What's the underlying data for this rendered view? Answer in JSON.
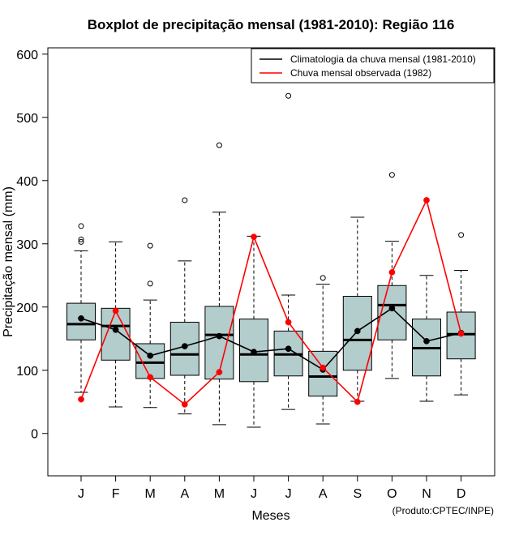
{
  "chart_data": {
    "type": "boxplot",
    "title": "Boxplot de precipitação mensal (1981-2010): Região 116",
    "xlabel": "Meses",
    "ylabel": "Precipitação mensal (mm)",
    "ylim": [
      -67,
      610
    ],
    "yticks": [
      0,
      100,
      200,
      300,
      400,
      500,
      600
    ],
    "categories": [
      "J",
      "F",
      "M",
      "A",
      "M",
      "J",
      "J",
      "A",
      "S",
      "O",
      "N",
      "D"
    ],
    "boxes": [
      {
        "whisker_low": 65,
        "q1": 148,
        "median": 173,
        "q3": 206,
        "whisker_high": 289,
        "outliers": [
          303,
          307,
          328
        ]
      },
      {
        "whisker_low": 42,
        "q1": 116,
        "median": 170,
        "q3": 198,
        "whisker_high": 303,
        "outliers": []
      },
      {
        "whisker_low": 41,
        "q1": 87,
        "median": 112,
        "q3": 142,
        "whisker_high": 211,
        "outliers": [
          237,
          297
        ]
      },
      {
        "whisker_low": 31,
        "q1": 92,
        "median": 125,
        "q3": 176,
        "whisker_high": 273,
        "outliers": [
          369
        ]
      },
      {
        "whisker_low": 14,
        "q1": 86,
        "median": 156,
        "q3": 201,
        "whisker_high": 350,
        "outliers": [
          456
        ]
      },
      {
        "whisker_low": 10,
        "q1": 82,
        "median": 125,
        "q3": 181,
        "whisker_high": 312,
        "outliers": []
      },
      {
        "whisker_low": 38,
        "q1": 91,
        "median": 125,
        "q3": 162,
        "whisker_high": 219,
        "outliers": [
          534
        ]
      },
      {
        "whisker_low": 15,
        "q1": 59,
        "median": 90,
        "q3": 130,
        "whisker_high": 236,
        "outliers": [
          246
        ]
      },
      {
        "whisker_low": 51,
        "q1": 100,
        "median": 148,
        "q3": 217,
        "whisker_high": 342,
        "outliers": []
      },
      {
        "whisker_low": 87,
        "q1": 148,
        "median": 203,
        "q3": 234,
        "whisker_high": 304,
        "outliers": [
          409
        ]
      },
      {
        "whisker_low": 51,
        "q1": 91,
        "median": 135,
        "q3": 181,
        "whisker_high": 250,
        "outliers": []
      },
      {
        "whisker_low": 61,
        "q1": 118,
        "median": 157,
        "q3": 192,
        "whisker_high": 258,
        "outliers": [
          314
        ]
      }
    ],
    "series": [
      {
        "name": "Climatologia da chuva mensal (1981-2010)",
        "color": "#000000",
        "values": [
          182,
          164,
          123,
          138,
          154,
          129,
          134,
          101,
          162,
          198,
          146,
          159
        ]
      },
      {
        "name": "Chuva mensal observada (1982)",
        "color": "#ff0000",
        "values": [
          54,
          194,
          89,
          46,
          97,
          311,
          176,
          104,
          50,
          255,
          369,
          158
        ]
      }
    ],
    "box_fill": "#b3cccc",
    "legend_position": "top-right",
    "credit": "(Produto:CPTEC/INPE)"
  }
}
